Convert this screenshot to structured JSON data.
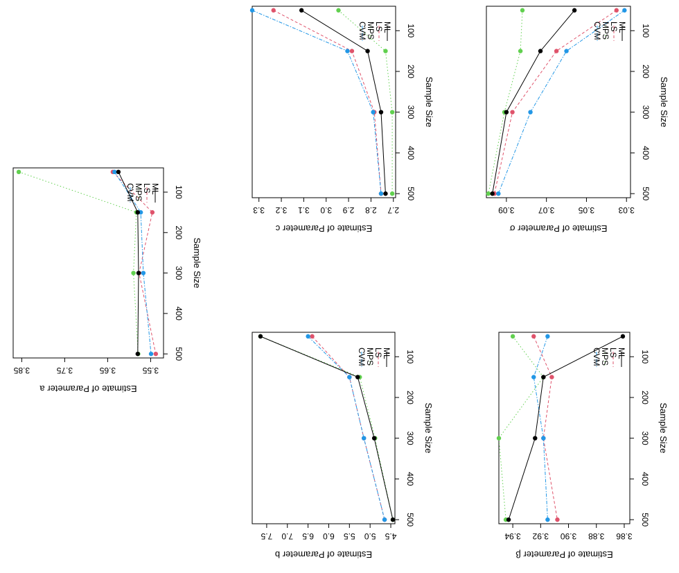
{
  "colors": {
    "ML": "#000000",
    "LS": "#DF536B",
    "MPS": "#61D04F",
    "CVM": "#2297E6"
  },
  "chart_data": [
    {
      "id": "a",
      "type": "line",
      "xlabel": "Sample Size",
      "ylabel": "Estimate of Parameter a",
      "x": [
        50,
        150,
        300,
        500
      ],
      "xticks": [
        100,
        200,
        300,
        400,
        500
      ],
      "xtick_labels": [
        "100",
        "200",
        "300",
        "400",
        "500"
      ],
      "xlim": [
        40,
        510
      ],
      "yticks": [
        3.55,
        3.65,
        3.75,
        3.85
      ],
      "ytick_labels": [
        "3.55",
        "3.65",
        "3.75",
        "3.85"
      ],
      "ylim": [
        3.52,
        3.87
      ],
      "legend": "top-left",
      "series": [
        {
          "name": "ML",
          "values": [
            3.625,
            3.58,
            3.578,
            3.58
          ]
        },
        {
          "name": "LS",
          "values": [
            3.638,
            3.546,
            3.577,
            3.538
          ]
        },
        {
          "name": "MPS",
          "values": [
            3.857,
            3.583,
            3.59,
            3.579
          ]
        },
        {
          "name": "CVM",
          "values": [
            3.634,
            3.573,
            3.567,
            3.549
          ]
        }
      ]
    },
    {
      "id": "c",
      "type": "line",
      "xlabel": "Sample Size",
      "ylabel": "Estimate of Parameter c",
      "x": [
        50,
        150,
        300,
        500
      ],
      "xticks": [
        100,
        200,
        300,
        400,
        500
      ],
      "xtick_labels": [
        "100",
        "200",
        "300",
        "400",
        "500"
      ],
      "xlim": [
        40,
        510
      ],
      "yticks": [
        2.7,
        2.8,
        2.9,
        3.0,
        3.1,
        3.2,
        3.3
      ],
      "ytick_labels": [
        "2.7",
        "2.8",
        "2.9",
        "3.0",
        "3.1",
        "3.2",
        "3.3"
      ],
      "ylim": [
        2.69,
        3.33
      ],
      "legend": "top-left",
      "series": [
        {
          "name": "ML",
          "values": [
            3.11,
            2.815,
            2.755,
            2.735
          ]
        },
        {
          "name": "LS",
          "values": [
            3.235,
            2.885,
            2.785,
            2.755
          ]
        },
        {
          "name": "MPS",
          "values": [
            2.945,
            2.735,
            2.705,
            2.705
          ]
        },
        {
          "name": "CVM",
          "values": [
            3.33,
            2.905,
            2.79,
            2.755
          ]
        }
      ]
    },
    {
      "id": "sigma",
      "type": "line",
      "xlabel": "Sample Size",
      "ylabel": "Estimate of Parameter σ",
      "x": [
        50,
        150,
        300,
        500
      ],
      "xticks": [
        100,
        200,
        300,
        400,
        500
      ],
      "xtick_labels": [
        "100",
        "200",
        "300",
        "400",
        "500"
      ],
      "xlim": [
        40,
        510
      ],
      "yticks": [
        3.03,
        3.05,
        3.07,
        3.09
      ],
      "ytick_labels": [
        "3.03",
        "3.05",
        "3.07",
        "3.09"
      ],
      "ylim": [
        3.028,
        3.1
      ],
      "legend": "top-left",
      "series": [
        {
          "name": "ML",
          "values": [
            3.056,
            3.073,
            3.09,
            3.097
          ]
        },
        {
          "name": "LS",
          "values": [
            3.035,
            3.065,
            3.087,
            3.096
          ]
        },
        {
          "name": "MPS",
          "values": [
            3.082,
            3.083,
            3.091,
            3.099
          ]
        },
        {
          "name": "CVM",
          "values": [
            3.031,
            3.06,
            3.078,
            3.094
          ]
        }
      ]
    },
    {
      "id": "b",
      "type": "line",
      "xlabel": "Sample Size",
      "ylabel": "Estimate of Parameter b",
      "x": [
        50,
        150,
        300,
        500
      ],
      "xticks": [
        100,
        200,
        300,
        400,
        500
      ],
      "xtick_labels": [
        "100",
        "200",
        "300",
        "400",
        "500"
      ],
      "xlim": [
        40,
        510
      ],
      "yticks": [
        4.5,
        5.0,
        5.5,
        6.0,
        6.5,
        7.0,
        7.5
      ],
      "ytick_labels": [
        "4.5",
        "5.0",
        "5.5",
        "6.0",
        "6.5",
        "7.0",
        "7.5"
      ],
      "ylim": [
        4.4,
        7.85
      ],
      "legend": "top-left",
      "series": [
        {
          "name": "ML",
          "values": [
            7.65,
            5.3,
            4.9,
            4.45
          ]
        },
        {
          "name": "LS",
          "values": [
            6.4,
            5.5,
            5.15,
            4.65
          ]
        },
        {
          "name": "MPS",
          "values": [
            7.65,
            5.25,
            4.88,
            4.45
          ]
        },
        {
          "name": "CVM",
          "values": [
            6.5,
            5.5,
            5.15,
            4.65
          ]
        }
      ]
    },
    {
      "id": "beta",
      "type": "line",
      "xlabel": "Sample Size",
      "ylabel": "Estimate of Parameter β",
      "x": [
        50,
        150,
        300,
        500
      ],
      "xticks": [
        100,
        200,
        300,
        400,
        500
      ],
      "xtick_labels": [
        "100",
        "200",
        "300",
        "400",
        "500"
      ],
      "xlim": [
        40,
        510
      ],
      "yticks": [
        3.86,
        3.88,
        3.9,
        3.92,
        3.94
      ],
      "ytick_labels": [
        "3.86",
        "3.88",
        "3.90",
        "3.92",
        "3.94"
      ],
      "ylim": [
        3.856,
        3.95
      ],
      "legend": "top-left",
      "series": [
        {
          "name": "ML",
          "values": [
            3.861,
            3.918,
            3.924,
            3.943
          ]
        },
        {
          "name": "LS",
          "values": [
            3.925,
            3.912,
            3.918,
            3.908
          ]
        },
        {
          "name": "MPS",
          "values": [
            3.94,
            3.918,
            3.95,
            3.945
          ]
        },
        {
          "name": "CVM",
          "values": [
            3.915,
            3.925,
            3.918,
            3.915
          ]
        }
      ]
    }
  ]
}
